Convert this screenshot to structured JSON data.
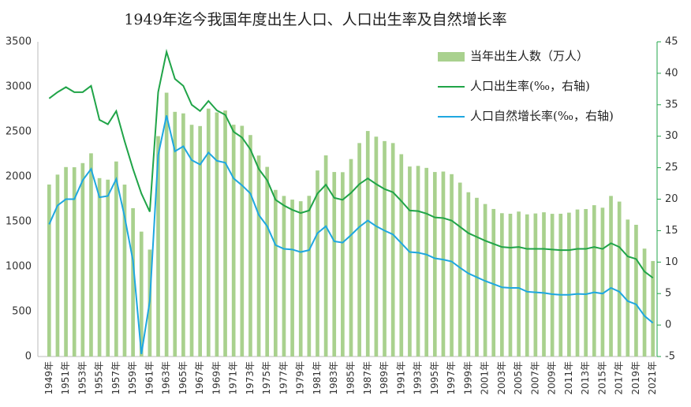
{
  "chart_data": {
    "type": "combo",
    "title": "1949年迄今我国年度出生人口、人口出生率及自然增长率",
    "categories": [
      "1949年",
      null,
      "1951年",
      null,
      "1953年",
      null,
      "1955年",
      null,
      "1957年",
      null,
      "1959年",
      null,
      "1961年",
      null,
      "1963年",
      null,
      "1965年",
      null,
      "1967年",
      null,
      "1969年",
      null,
      "1971年",
      null,
      "1973年",
      null,
      "1975年",
      null,
      "1977年",
      null,
      "1979年",
      null,
      "1981年",
      null,
      "1983年",
      null,
      "1985年",
      null,
      "1987年",
      null,
      "1989年",
      null,
      "1991年",
      null,
      "1993年",
      null,
      "1995年",
      null,
      "1997年",
      null,
      "1999年",
      null,
      "2001年",
      null,
      "2003年",
      null,
      "2005年",
      null,
      "2007年",
      null,
      "2009年",
      null,
      "2011年",
      null,
      "2013年",
      null,
      "2015年",
      null,
      "2017年",
      null,
      "2019年",
      null,
      "2021年"
    ],
    "series": [
      {
        "name": "当年出生人数（万人）",
        "type": "bar",
        "color": "#a9d18e",
        "values": [
          1913,
          2023,
          2107,
          2105,
          2151,
          2260,
          1984,
          1967,
          2169,
          1912,
          1650,
          1389,
          1189,
          2451,
          2934,
          2721,
          2704,
          2577,
          2563,
          2757,
          2715,
          2736,
          2578,
          2566,
          2463,
          2235,
          2109,
          1853,
          1786,
          1745,
          1727,
          1787,
          2069,
          2237,
          2052,
          2050,
          2196,
          2374,
          2508,
          2445,
          2396,
          2374,
          2250,
          2113,
          2120,
          2098,
          2052,
          2057,
          2028,
          1934,
          1827,
          1765,
          1696,
          1641,
          1594,
          1588,
          1612,
          1581,
          1591,
          1604,
          1587,
          1588,
          1600,
          1635,
          1640,
          1683,
          1655,
          1786,
          1723,
          1523,
          1465,
          1200,
          1062
        ]
      },
      {
        "name": "人口出生率(‰，右轴)",
        "type": "line",
        "axis": "y2",
        "color": "#20a448",
        "values": [
          36,
          37,
          37.8,
          37,
          37,
          38,
          32.6,
          31.9,
          34,
          29.2,
          24.8,
          20.9,
          18,
          37,
          43.4,
          39.1,
          38,
          35,
          34,
          35.6,
          34.1,
          33.4,
          30.7,
          29.8,
          27.9,
          24.8,
          23,
          19.9,
          19,
          18.3,
          17.8,
          18.2,
          20.9,
          22.3,
          20.2,
          19.9,
          21,
          22.4,
          23.3,
          22.4,
          21.6,
          21.1,
          19.7,
          18.2,
          18.1,
          17.7,
          17.1,
          17,
          16.6,
          15.6,
          14.6,
          14,
          13.4,
          12.9,
          12.4,
          12.3,
          12.4,
          12.1,
          12.1,
          12.1,
          12,
          11.9,
          11.9,
          12.1,
          12.1,
          12.4,
          12.1,
          13,
          12.4,
          10.9,
          10.5,
          8.5,
          7.5
        ]
      },
      {
        "name": "人口自然增长率(‰，右轴)",
        "type": "line",
        "axis": "y2",
        "color": "#1ea7e0",
        "values": [
          16,
          19,
          20,
          20,
          23,
          24.8,
          20.3,
          20.5,
          23.2,
          17.2,
          10.2,
          -4.6,
          3.8,
          27,
          33.3,
          27.6,
          28.4,
          26.2,
          25.5,
          27.4,
          26.1,
          25.8,
          23.3,
          22.2,
          20.9,
          17.5,
          15.7,
          12.7,
          12.1,
          12,
          11.6,
          11.9,
          14.6,
          15.7,
          13.3,
          13.1,
          14.3,
          15.6,
          16.6,
          15.7,
          15,
          14.4,
          13,
          11.6,
          11.5,
          11.2,
          10.6,
          10.4,
          10.1,
          9.1,
          8.2,
          7.6,
          7,
          6.5,
          6,
          5.9,
          5.9,
          5.3,
          5.2,
          5.1,
          4.9,
          4.8,
          4.8,
          4.95,
          4.9,
          5.2,
          5,
          5.9,
          5.3,
          3.8,
          3.3,
          1.45,
          0.34
        ]
      }
    ],
    "ylim": [
      0,
      3500
    ],
    "yticks": [
      0,
      500,
      1000,
      1500,
      2000,
      2500,
      3000,
      3500
    ],
    "y2lim": [
      -5,
      45
    ],
    "y2ticks": [
      -5,
      0,
      5,
      10,
      15,
      20,
      25,
      30,
      35,
      40,
      45
    ],
    "grid": false,
    "legend": "upper right"
  }
}
